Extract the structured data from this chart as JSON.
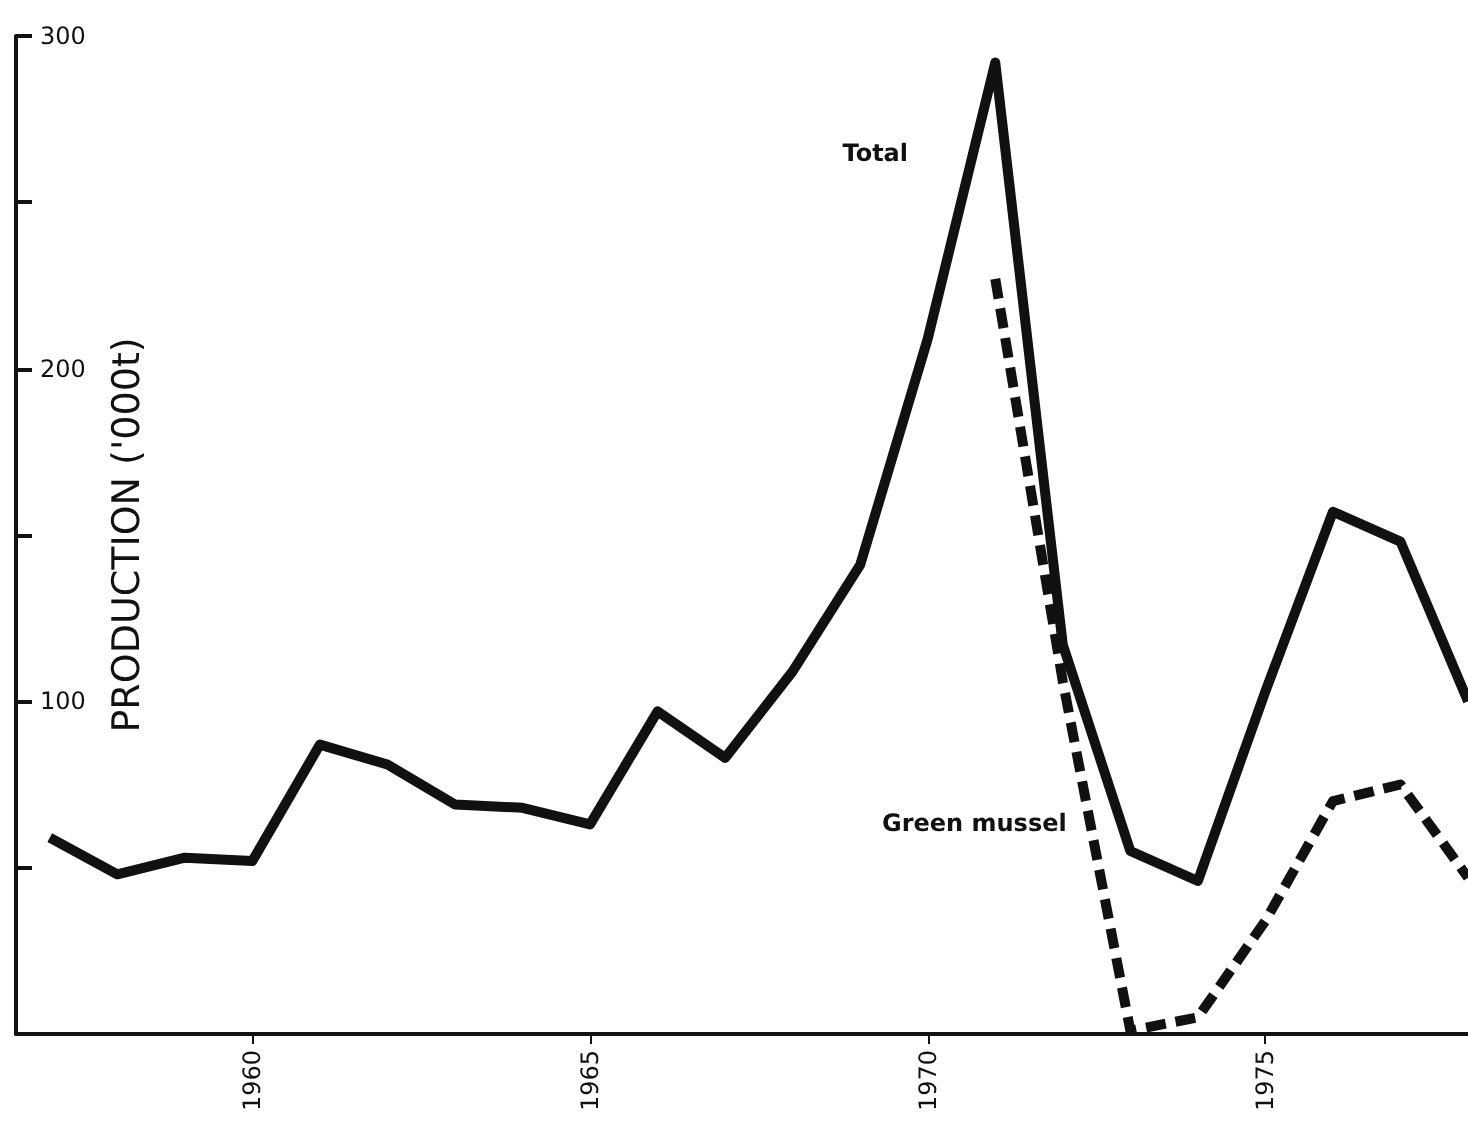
{
  "chart_data": {
    "type": "line",
    "ylabel": "PRODUCTION ('000t)",
    "x": [
      1957,
      1958,
      1959,
      1960,
      1961,
      1962,
      1963,
      1964,
      1965,
      1966,
      1967,
      1968,
      1969,
      1970,
      1971,
      1972,
      1973,
      1974,
      1975,
      1976,
      1977,
      1978
    ],
    "series": [
      {
        "name": "Total",
        "color": "#111111",
        "line_style": "solid",
        "values": [
          59,
          48,
          53,
          52,
          87,
          81,
          69,
          68,
          63,
          97,
          83,
          109,
          141,
          209,
          292,
          117,
          55,
          46,
          103,
          157,
          148,
          100
        ]
      },
      {
        "name": "Green mussel",
        "color": "#111111",
        "line_style": "dashed",
        "values": [
          null,
          null,
          null,
          null,
          null,
          null,
          null,
          null,
          null,
          null,
          null,
          null,
          null,
          null,
          227,
          106,
          1,
          5,
          34,
          70,
          75,
          47
        ]
      }
    ],
    "xlim": [
      1956.5,
      1978
    ],
    "xticks": [
      1960,
      1965,
      1970,
      1975
    ],
    "ylim": [
      0,
      300
    ],
    "yticks": [
      {
        "value": 0,
        "label": null
      },
      {
        "value": 50,
        "label": null
      },
      100,
      {
        "value": 150,
        "label": null
      },
      200,
      {
        "value": 250,
        "label": null
      },
      300
    ],
    "grid": false,
    "legend": false,
    "marker": "none"
  }
}
